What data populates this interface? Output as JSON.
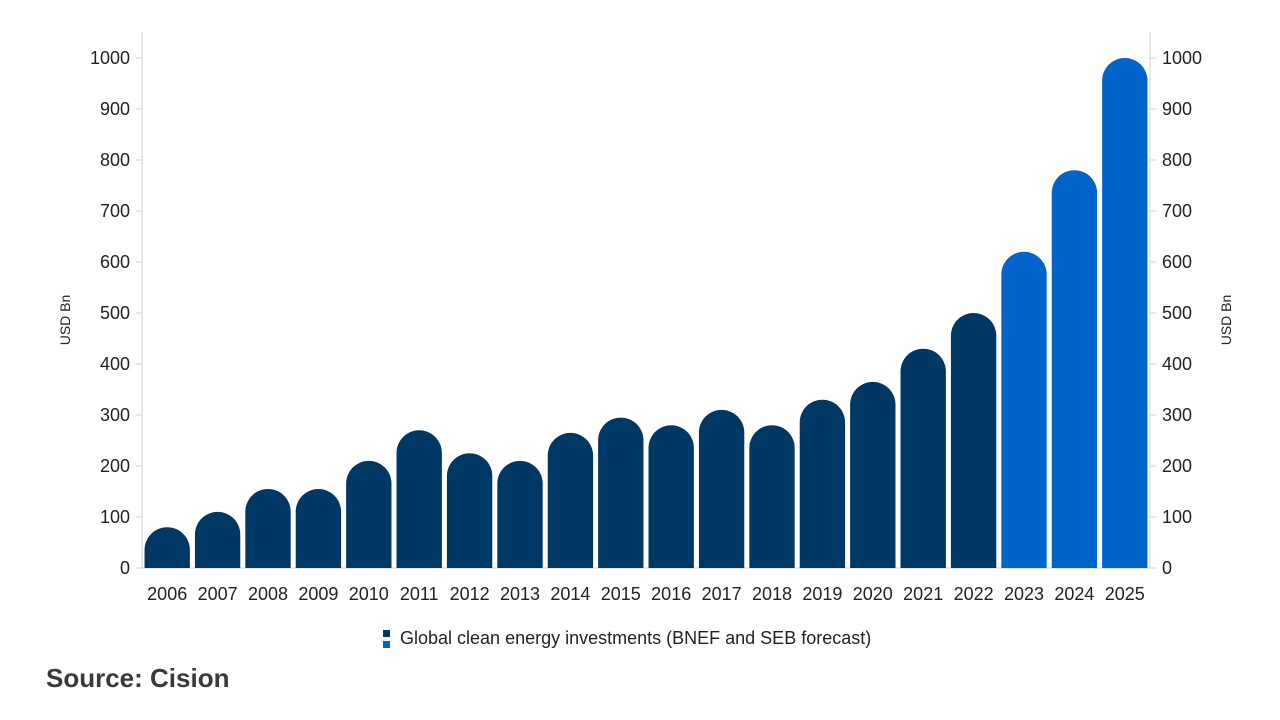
{
  "chart_data": {
    "type": "bar",
    "categories": [
      "2006",
      "2007",
      "2008",
      "2009",
      "2010",
      "2011",
      "2012",
      "2013",
      "2014",
      "2015",
      "2016",
      "2017",
      "2018",
      "2019",
      "2020",
      "2021",
      "2022",
      "2023",
      "2024",
      "2025"
    ],
    "series": [
      {
        "name": "Global clean energy investments (BNEF and SEB forecast)",
        "values": [
          80,
          110,
          155,
          155,
          210,
          270,
          225,
          210,
          265,
          295,
          280,
          310,
          280,
          330,
          365,
          430,
          500,
          620,
          780,
          1000
        ]
      }
    ],
    "forecast_from": "2023",
    "colors": {
      "historical": "#003865",
      "forecast": "#0064CB"
    },
    "ylabel": "USD Bn",
    "ylabel_right": "USD Bn",
    "ylim": [
      0,
      1000
    ],
    "yticks": [
      0,
      100,
      200,
      300,
      400,
      500,
      600,
      700,
      800,
      900,
      1000
    ],
    "legend_position": "bottom-center",
    "grid": false
  },
  "source": "Source: Cision"
}
